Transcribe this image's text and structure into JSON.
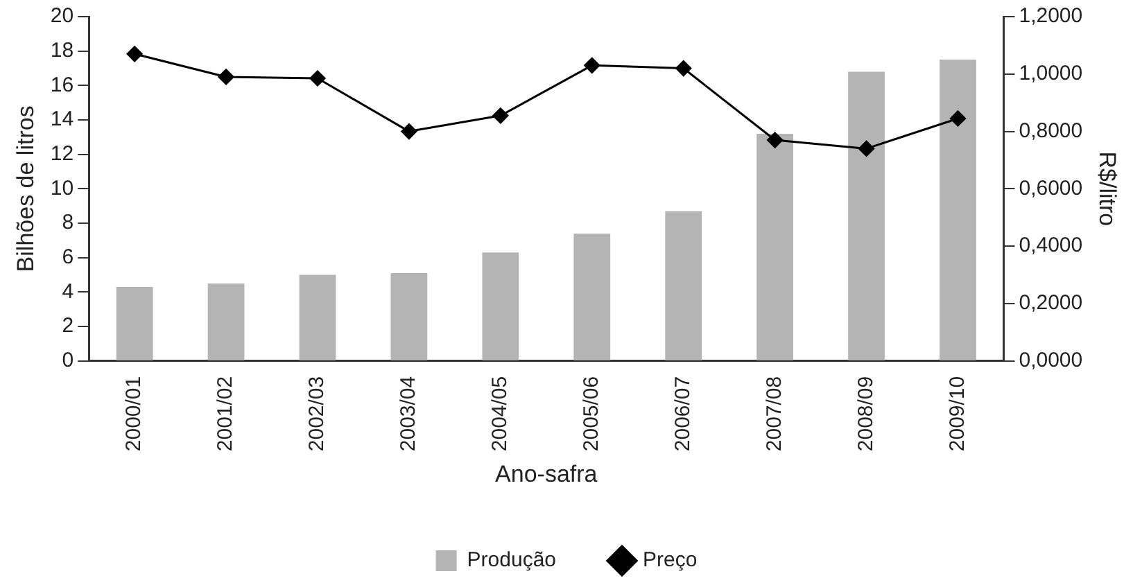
{
  "chart_data": {
    "type": "bar",
    "xlabel": "Ano-safra",
    "ylabel": "Bilhões de litros",
    "y2label": "R$/litro",
    "categories": [
      "2000/01",
      "2001/02",
      "2002/03",
      "2003/04",
      "2004/05",
      "2005/06",
      "2006/07",
      "2007/08",
      "2008/09",
      "2009/10"
    ],
    "series": [
      {
        "name": "Produção",
        "color": "#b4b4b4",
        "values": [
          4.3,
          4.5,
          5.0,
          5.1,
          6.3,
          7.4,
          8.7,
          13.2,
          16.8,
          17.5
        ]
      },
      {
        "name": "Preço",
        "type": "line",
        "axis": "y2",
        "color": "#000000",
        "marker": "diamond",
        "values": [
          1.07,
          0.99,
          0.985,
          0.8,
          0.855,
          1.03,
          1.02,
          0.77,
          0.74,
          0.845
        ]
      }
    ],
    "ylim": [
      0,
      20
    ],
    "yticks": [
      0,
      2,
      4,
      6,
      8,
      10,
      12,
      14,
      16,
      18,
      20
    ],
    "y2lim": [
      0,
      1.2
    ],
    "y2ticks": [
      {
        "value": 0,
        "label": "0,0000"
      },
      {
        "value": 0.2,
        "label": "0,2000"
      },
      {
        "value": 0.4,
        "label": "0,4000"
      },
      {
        "value": 0.6,
        "label": "0,6000"
      },
      {
        "value": 0.8,
        "label": "0,8000"
      },
      {
        "value": 1.0,
        "label": "1,0000"
      },
      {
        "value": 1.2,
        "label": "1,2000"
      }
    ],
    "grid": false,
    "legend": "bottom"
  }
}
